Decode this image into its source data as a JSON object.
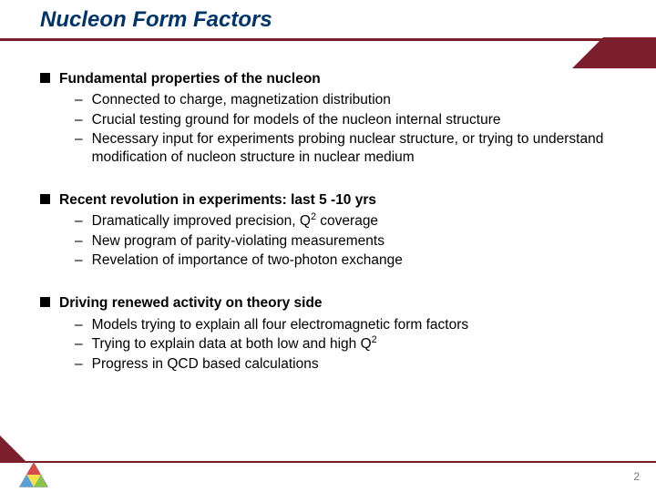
{
  "title": "Nucleon Form Factors",
  "colors": {
    "title_color": "#003366",
    "accent": "#7a1f2b",
    "text": "#000000",
    "page_num": "#7a7a7a",
    "background": "#ffffff"
  },
  "typography": {
    "title_fontsize": 24,
    "body_fontsize": 15.5,
    "pagenum_fontsize": 12
  },
  "sections": [
    {
      "heading": "Fundamental properties of the nucleon",
      "items": [
        "Connected to charge, magnetization distribution",
        "Crucial testing ground for models of the nucleon internal structure",
        "Necessary input for experiments probing nuclear structure, or trying to understand modification of nucleon structure in nuclear medium"
      ]
    },
    {
      "heading": "Recent revolution in experiments: last 5 -10 yrs",
      "items": [
        "Dramatically improved precision, Q<sup>2</sup> coverage",
        "New program of parity-violating measurements",
        "Revelation of importance of two-photon exchange"
      ]
    },
    {
      "heading": "Driving renewed activity on theory side",
      "items": [
        "Models trying to explain all four electromagnetic form factors",
        "Trying to explain data at both low and high Q<sup>2</sup>",
        "Progress in QCD based calculations"
      ]
    }
  ],
  "page_number": "2"
}
